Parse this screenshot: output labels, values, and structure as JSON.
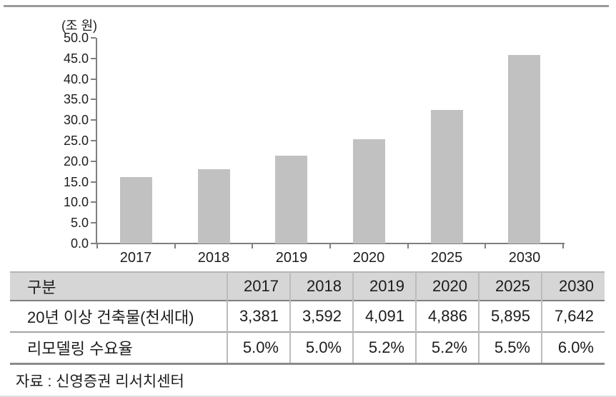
{
  "source_note": "자료 : 신영증권 리서치센터",
  "chart_data": {
    "type": "bar",
    "title": "",
    "unit_label": "(조 원)",
    "categories": [
      "2017",
      "2018",
      "2019",
      "2020",
      "2025",
      "2030"
    ],
    "values": [
      16.1,
      18.0,
      21.3,
      25.4,
      32.4,
      45.9
    ],
    "xlabel": "",
    "ylabel": "(조 원)",
    "ylim": [
      0,
      50
    ],
    "ytick_step": 5,
    "ytick_labels": [
      "0.0",
      "5.0",
      "10.0",
      "15.0",
      "20.0",
      "25.0",
      "30.0",
      "35.0",
      "40.0",
      "45.0",
      "50.0"
    ],
    "grid": false,
    "legend": "none",
    "bar_color": "#c1c1c1",
    "axis_color": "#7f7f7f"
  },
  "table": {
    "header_bg": "#d6d6d6",
    "header": [
      "구분",
      "2017",
      "2018",
      "2019",
      "2020",
      "2025",
      "2030"
    ],
    "rows": [
      {
        "label": "20년 이상 건축물(천세대)",
        "values": [
          "3,381",
          "3,592",
          "4,091",
          "4,886",
          "5,895",
          "7,642"
        ]
      },
      {
        "label": "리모델링 수요율",
        "values": [
          "5.0%",
          "5.0%",
          "5.2%",
          "5.2%",
          "5.5%",
          "6.0%"
        ]
      }
    ]
  }
}
